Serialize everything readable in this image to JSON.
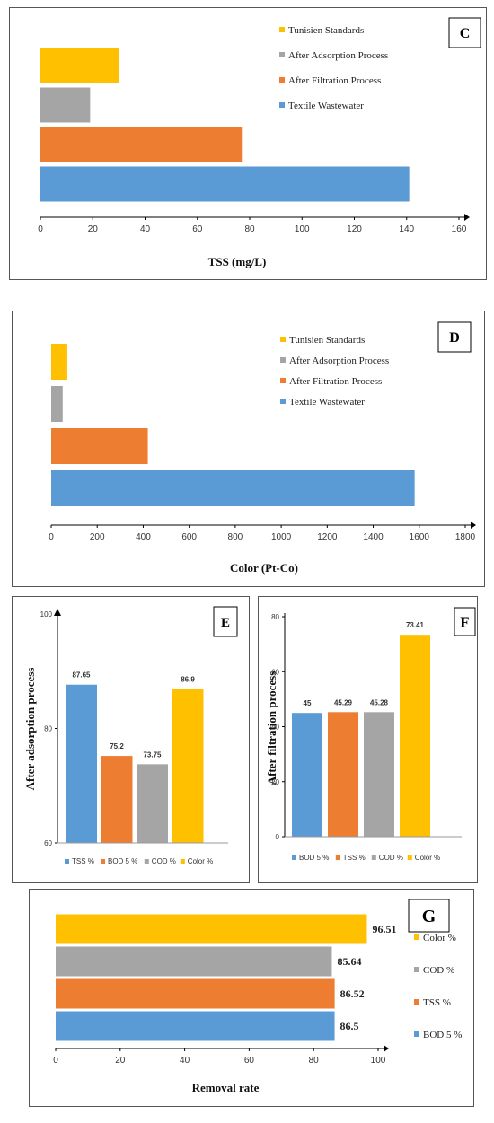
{
  "colors": {
    "blue": "#5b9bd5",
    "orange": "#ed7d31",
    "gray": "#a5a5a5",
    "yellow": "#ffc000"
  },
  "chart_data": [
    {
      "id": "C",
      "type": "bar",
      "orientation": "horizontal",
      "panel_letter": "C",
      "xlabel": "TSS (mg/L)",
      "xlim": [
        0,
        160
      ],
      "xticks": [
        0,
        20,
        40,
        60,
        80,
        100,
        120,
        140,
        160
      ],
      "categories": [
        "Textile Wastewater",
        "After Filtration Process",
        "After Adsorption Process",
        "Tunisien Standards"
      ],
      "values": [
        141,
        77,
        19,
        30
      ],
      "legend": [
        "Tunisien Standards",
        "After Adsorption Process",
        "After Filtration Process",
        "Textile Wastewater"
      ],
      "legend_placement": "top-right",
      "grid": false
    },
    {
      "id": "D",
      "type": "bar",
      "orientation": "horizontal",
      "panel_letter": "D",
      "xlabel": "Color (Pt-Co)",
      "xlim": [
        0,
        1800
      ],
      "xticks": [
        0,
        200,
        400,
        600,
        800,
        1000,
        1200,
        1400,
        1600,
        1800
      ],
      "categories": [
        "Textile Wastewater",
        "After Filtration Process",
        "After Adsorption Process",
        "Tunisien Standards"
      ],
      "values": [
        1580,
        420,
        50,
        70
      ],
      "legend": [
        "Tunisien Standards",
        "After Adsorption Process",
        "After Filtration Process",
        "Textile Wastewater"
      ],
      "legend_placement": "top-right",
      "grid": false
    },
    {
      "id": "E",
      "type": "bar",
      "orientation": "vertical",
      "panel_letter": "E",
      "ylabel": "After  adsorption process",
      "ylim": [
        60,
        100
      ],
      "yticks": [
        60,
        80,
        100
      ],
      "categories": [
        "TSS %",
        "BOD 5 %",
        "COD %",
        "Color %"
      ],
      "values": [
        87.65,
        75.2,
        73.75,
        86.9
      ],
      "value_labels": [
        "87.65",
        "75.2",
        "73.75",
        "86.9"
      ],
      "legend": [
        "TSS %",
        "BOD 5 %",
        "COD %",
        "Color %"
      ],
      "legend_placement": "bottom",
      "grid": false
    },
    {
      "id": "F",
      "type": "bar",
      "orientation": "vertical",
      "panel_letter": "F",
      "ylabel": "After filtration process",
      "ylim": [
        0,
        80
      ],
      "yticks": [
        0,
        20,
        40,
        60,
        80
      ],
      "categories": [
        "BOD 5 %",
        "TSS %",
        "COD %",
        "Color %"
      ],
      "values": [
        45,
        45.29,
        45.28,
        73.41
      ],
      "value_labels": [
        "45",
        "45.29",
        "45.28",
        "73.41"
      ],
      "legend": [
        "BOD 5 %",
        "TSS %",
        "COD %",
        "Color %"
      ],
      "legend_placement": "bottom",
      "grid": false
    },
    {
      "id": "G",
      "type": "bar",
      "orientation": "horizontal",
      "panel_letter": "G",
      "xlabel": "Removal rate",
      "xlim": [
        0,
        100
      ],
      "xticks": [
        0,
        20,
        40,
        60,
        80,
        100
      ],
      "categories": [
        "BOD 5 %",
        "TSS %",
        "COD %",
        "Color %"
      ],
      "values": [
        86.5,
        86.52,
        85.64,
        96.51
      ],
      "value_labels": [
        "86.5",
        "86.52",
        "85.64",
        "96.51"
      ],
      "legend": [
        "Color %",
        "COD %",
        "TSS %",
        "BOD 5 %"
      ],
      "legend_placement": "right",
      "grid": false
    }
  ]
}
